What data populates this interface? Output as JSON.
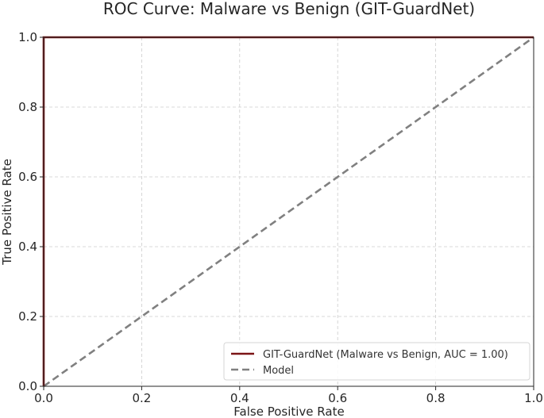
{
  "chart_data": {
    "type": "line",
    "title": "ROC Curve: Malware vs Benign (GIT-GuardNet)",
    "xlabel": "False Positive Rate",
    "ylabel": "True Positive Rate",
    "xlim": [
      0,
      1
    ],
    "ylim": [
      0,
      1
    ],
    "grid": true,
    "legend_position": "lower-right",
    "x_ticks": [
      "0.0",
      "0.2",
      "0.4",
      "0.6",
      "0.8",
      "1.0"
    ],
    "y_ticks": [
      "0.0",
      "0.2",
      "0.4",
      "0.6",
      "0.8",
      "1.0"
    ],
    "series": [
      {
        "name": "GIT-GuardNet (Malware vs Benign, AUC = 1.00)",
        "color": "#7b1416",
        "style": "solid",
        "points": [
          [
            0,
            0
          ],
          [
            0,
            1
          ],
          [
            1,
            1
          ]
        ]
      },
      {
        "name": "Model",
        "color": "#808080",
        "style": "dashed",
        "points": [
          [
            0,
            0
          ],
          [
            1,
            1
          ]
        ]
      }
    ]
  }
}
